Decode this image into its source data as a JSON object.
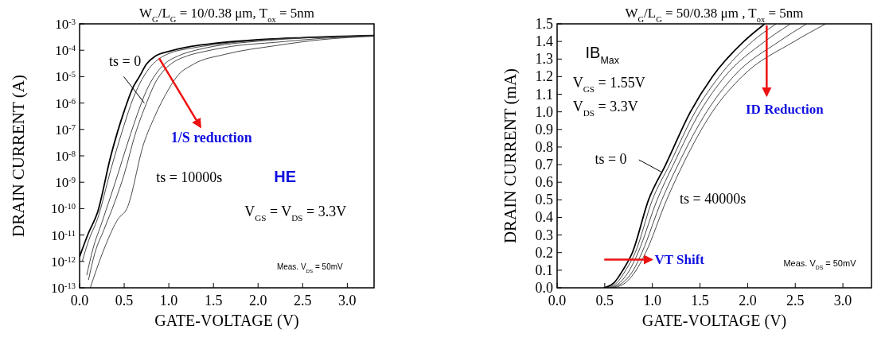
{
  "chart_data": [
    {
      "type": "line",
      "title": "W$_{G}$/L$_{G}$ = 10/0.38 μm, T$_{ox}$ = 5nm",
      "xlabel": "GATE-VOLTAGE (V)",
      "ylabel": "DRAIN CURRENT (A)",
      "log": "y",
      "xlim": [
        0,
        3.3
      ],
      "xticks": [
        {
          "value": 0,
          "label": "0.0"
        },
        0.5,
        {
          "value": 1,
          "label": "1.0"
        },
        1.5,
        {
          "value": 2,
          "label": "2.0"
        },
        2.5,
        {
          "value": 3,
          "label": "3.0"
        }
      ],
      "ylim": [
        1e-13,
        0.001
      ],
      "yticks": [
        {
          "value": 1e-13,
          "label": "10$^{-13}$"
        },
        {
          "value": 1e-12,
          "label": "10$^{-12}$"
        },
        {
          "value": 1e-11,
          "label": "10$^{-11}$"
        },
        {
          "value": 1e-10,
          "label": "10$^{-10}$"
        },
        {
          "value": 1e-09,
          "label": "10$^{-9}$"
        },
        {
          "value": 1e-08,
          "label": "10$^{-8}$"
        },
        {
          "value": 1e-07,
          "label": "10$^{-7}$"
        },
        {
          "value": 1e-06,
          "label": "10$^{-6}$"
        },
        {
          "value": 1e-05,
          "label": "10$^{-5}$"
        },
        {
          "value": 0.0001,
          "label": "10$^{-4}$"
        },
        {
          "value": 0.001,
          "label": "10$^{-3}$"
        }
      ],
      "annotations": [
        "ts = 0",
        "1/S reduction",
        "ts = 10000s",
        "HE",
        "V$_{GS}$ = V$_{DS}$ = 3.3V",
        "Meas. V$_{DS}$ = 50mV"
      ],
      "series": [
        {
          "color": "#000000",
          "x": [
            0,
            0.1,
            0.2,
            0.35,
            0.5,
            0.6,
            0.67,
            0.75,
            0.85,
            1.0,
            1.25,
            1.5,
            2.0,
            2.5,
            3.3
          ],
          "values": [
            1.5e-12,
            1.2e-11,
            7e-11,
            1e-08,
            5e-07,
            4e-06,
            1e-05,
            3e-05,
            6e-05,
            9e-05,
            0.00014,
            0.00018,
            0.00025,
            0.0003,
            0.00036
          ]
        },
        {
          "color": "#333333",
          "x": [
            0.03,
            0.1,
            0.2,
            0.35,
            0.5,
            0.6,
            0.7,
            0.8,
            0.9,
            1.0,
            1.25,
            1.5,
            2.0,
            2.5,
            3.3
          ],
          "values": [
            1e-12,
            6e-12,
            4e-11,
            3e-09,
            1.5e-07,
            1.5e-06,
            8e-06,
            2.5e-05,
            5e-05,
            7.5e-05,
            0.00012,
            0.00016,
            0.00024,
            0.0003,
            0.00036
          ]
        },
        {
          "color": "#333333",
          "x": [
            0.08,
            0.15,
            0.25,
            0.4,
            0.55,
            0.65,
            0.75,
            0.85,
            0.95,
            1.1,
            1.3,
            1.5,
            2.0,
            2.5,
            3.3
          ],
          "values": [
            3e-13,
            3e-12,
            3e-11,
            1e-09,
            4e-08,
            4e-07,
            3e-06,
            1.2e-05,
            3e-05,
            6e-05,
            0.0001,
            0.00014,
            0.00022,
            0.00029,
            0.00035
          ]
        },
        {
          "color": "#333333",
          "x": [
            0.1,
            0.17,
            0.27,
            0.4,
            0.5,
            0.62,
            0.75,
            0.85,
            0.95,
            1.05,
            1.2,
            1.4,
            1.7,
            2.2,
            2.7,
            3.3
          ],
          "values": [
            2e-13,
            2e-12,
            1.5e-11,
            2e-10,
            2e-09,
            6e-08,
            1e-06,
            6e-06,
            1.8e-05,
            3.5e-05,
            6e-05,
            9e-05,
            0.00014,
            0.0002,
            0.00028,
            0.00035
          ]
        },
        {
          "color": "#333333",
          "x": [
            0.12,
            0.19,
            0.29,
            0.43,
            0.53,
            0.72,
            0.84,
            0.99,
            1.09,
            1.28,
            1.63,
            2.2,
            2.7,
            3.3
          ],
          "values": [
            1e-13,
            5e-13,
            4e-12,
            4e-11,
            1e-10,
            3e-08,
            3e-07,
            3e-06,
            1e-05,
            3e-05,
            7e-05,
            0.00015,
            0.00025,
            0.00034
          ]
        }
      ]
    },
    {
      "type": "line",
      "title": "W$_{G}$/L$_{G}$ = 50/0.38 μm , T$_{ox}$ = 5nm",
      "xlabel": "GATE-VOLTAGE (V)",
      "ylabel": "DRAIN CURRENT (mA)",
      "xlim": [
        0,
        3.3
      ],
      "xticks": [
        {
          "value": 0,
          "label": "0.0"
        },
        0.5,
        {
          "value": 1,
          "label": "1.0"
        },
        1.5,
        {
          "value": 2,
          "label": "2.0"
        },
        2.5,
        {
          "value": 3,
          "label": "3.0"
        }
      ],
      "ylim": [
        0,
        1.5
      ],
      "yticks": [
        {
          "value": 0,
          "label": "0.0"
        },
        0.1,
        0.2,
        0.3,
        0.4,
        0.5,
        0.6,
        0.7,
        0.8,
        0.9,
        {
          "value": 1,
          "label": "1.0"
        },
        1.1,
        1.2,
        1.3,
        1.4,
        1.5
      ],
      "annotations": [
        "IB$_{Max}$",
        "V$_{GS}$ = 1.55V",
        "V$_{DS}$ =  3.3V",
        "ts = 0",
        "ID Reduction",
        "ts = 40000s",
        "VT Shift",
        "Meas. V$_{DS}$ = 50mV"
      ],
      "series": [
        {
          "color": "#000000",
          "x": [
            0.49,
            0.6,
            0.69,
            0.79,
            0.96,
            1.14,
            1.4,
            1.63,
            1.96,
            2.18
          ],
          "values": [
            0,
            0.03,
            0.1,
            0.2,
            0.5,
            0.7,
            1.0,
            1.2,
            1.4,
            1.5
          ]
        },
        {
          "color": "#333333",
          "x": [
            0.52,
            0.63,
            0.72,
            0.82,
            1.0,
            1.18,
            1.45,
            1.7,
            2.05,
            2.3
          ],
          "values": [
            0,
            0.03,
            0.1,
            0.2,
            0.5,
            0.7,
            1.0,
            1.2,
            1.4,
            1.5
          ]
        },
        {
          "color": "#333333",
          "x": [
            0.55,
            0.66,
            0.76,
            0.85,
            1.05,
            1.22,
            1.5,
            1.76,
            2.18,
            2.45
          ],
          "values": [
            0,
            0.03,
            0.1,
            0.2,
            0.5,
            0.7,
            1.0,
            1.2,
            1.4,
            1.5
          ]
        },
        {
          "color": "#333333",
          "x": [
            0.57,
            0.69,
            0.8,
            0.89,
            1.1,
            1.27,
            1.57,
            1.85,
            2.33,
            2.62
          ],
          "values": [
            0,
            0.03,
            0.1,
            0.2,
            0.5,
            0.7,
            1.0,
            1.2,
            1.4,
            1.5
          ]
        },
        {
          "color": "#333333",
          "x": [
            0.6,
            0.72,
            0.83,
            0.93,
            1.15,
            1.32,
            1.63,
            1.94,
            2.49,
            2.82
          ],
          "values": [
            0,
            0.03,
            0.1,
            0.2,
            0.5,
            0.7,
            1.0,
            1.2,
            1.4,
            1.5
          ]
        }
      ]
    }
  ]
}
